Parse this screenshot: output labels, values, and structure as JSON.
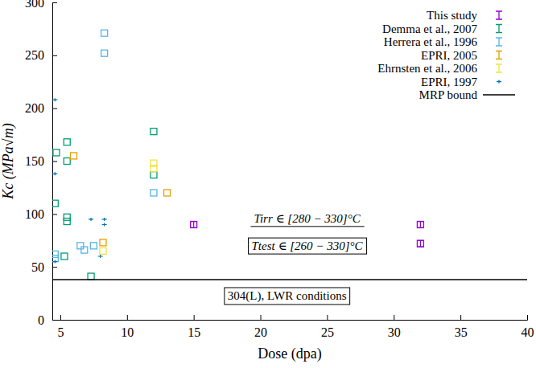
{
  "chart_data": {
    "type": "scatter",
    "x_label": "Dose (dpa)",
    "y_label": "Kc (MPa√m)",
    "xlim": [
      4.4,
      40
    ],
    "xticks": [
      5,
      10,
      15,
      20,
      25,
      30,
      35,
      40
    ],
    "ylim": [
      0,
      300
    ],
    "yticks": [
      0,
      50,
      100,
      150,
      200,
      250,
      300
    ],
    "grid": false,
    "legend": "top-right",
    "annotations": [
      "Tirr ∈ [280 − 330]°C",
      "Ttest ∈ [260 − 330]°C",
      "304(L), LWR conditions"
    ],
    "series": [
      {
        "name": "This study",
        "color": "#9400d3",
        "marker": "square",
        "x": [
          15,
          32,
          32
        ],
        "values": [
          90,
          90,
          72
        ],
        "errors": [
          3,
          3,
          3
        ]
      },
      {
        "name": "Demma et al., 2007",
        "color": "#009e73",
        "marker": "square",
        "x": [
          4.6,
          4.7,
          5.5,
          5.5,
          5.5,
          5.5,
          5.3,
          7.3,
          12,
          12
        ],
        "values": [
          110,
          158,
          168,
          150,
          97,
          93,
          60,
          41,
          178,
          137
        ]
      },
      {
        "name": "Herrera et al., 1996",
        "color": "#56b4e9",
        "marker": "square",
        "x": [
          8.3,
          8.3,
          4.6,
          4.6,
          6.5,
          6.8,
          7.5,
          12
        ],
        "values": [
          271,
          252,
          62,
          58,
          70,
          66,
          70,
          120
        ]
      },
      {
        "name": "EPRI, 2005",
        "color": "#e69f00",
        "marker": "square",
        "x": [
          6,
          13,
          8.2
        ],
        "values": [
          155,
          120,
          73
        ]
      },
      {
        "name": "Ehrnsten et al., 2006",
        "color": "#f0e442",
        "marker": "square",
        "x": [
          12,
          12,
          8.2
        ],
        "values": [
          148,
          143,
          65
        ]
      },
      {
        "name": "EPRI, 1997",
        "color": "#0072b2",
        "marker": "dot",
        "x": [
          4.6,
          4.6,
          4.6,
          7.3,
          8.3,
          8.3,
          8
        ],
        "values": [
          208,
          138,
          55,
          95,
          95,
          90,
          60
        ]
      },
      {
        "name": "MRP bound",
        "type": "line",
        "color": "#000000",
        "line_style": "solid",
        "x": [
          4.4,
          40
        ],
        "values": [
          38,
          38
        ]
      }
    ]
  }
}
